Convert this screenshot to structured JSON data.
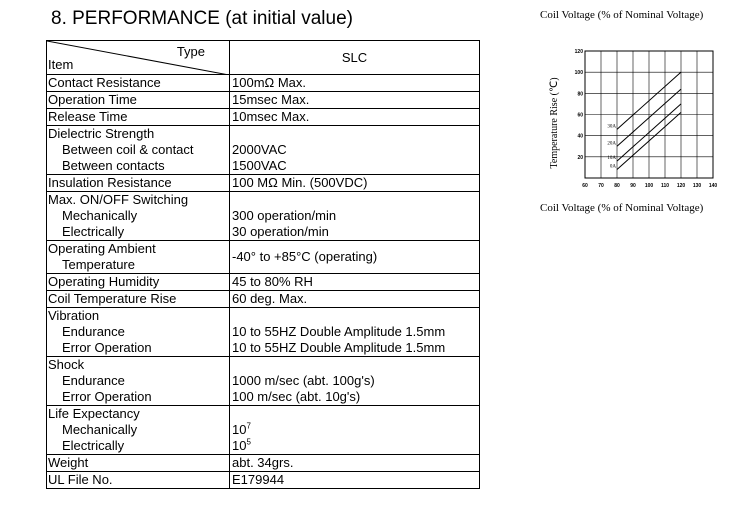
{
  "title": "8. PERFORMANCE (at initial value)",
  "table": {
    "header_type": "Type",
    "header_item": "Item",
    "header_model": "SLC",
    "contact_resistance": {
      "label": "Contact Resistance",
      "value": "100mΩ Max."
    },
    "operation_time": {
      "label": "Operation Time",
      "value": "15msec Max."
    },
    "release_time": {
      "label": "Release Time",
      "value": "10msec Max."
    },
    "dielectric": {
      "label": "Dielectric Strength",
      "sub1": "Between coil & contact",
      "val1": "2000VAC",
      "sub2": "Between contacts",
      "val2": "1500VAC"
    },
    "insulation": {
      "label": "Insulation Resistance",
      "value": "100 MΩ Min. (500VDC)"
    },
    "switching": {
      "label": "Max. ON/OFF Switching",
      "sub1": "Mechanically",
      "val1": "300 operation/min",
      "sub2": "Electrically",
      "val2": "30 operation/min"
    },
    "ambient": {
      "label1": "Operating Ambient",
      "label2": "Temperature",
      "value": "-40° to +85°C (operating)"
    },
    "humidity": {
      "label": "Operating Humidity",
      "value": "45 to 80% RH"
    },
    "coil_temp": {
      "label": "Coil Temperature Rise",
      "value": "60 deg. Max."
    },
    "vibration": {
      "label": "Vibration",
      "sub1": "Endurance",
      "val1": "10 to 55HZ Double Amplitude 1.5mm",
      "sub2": "Error Operation",
      "val2": "10 to 55HZ Double Amplitude 1.5mm"
    },
    "shock": {
      "label": "Shock",
      "sub1": "Endurance",
      "val1": "1000 m/sec (abt. 100g's)",
      "sub2": "Error Operation",
      "val2": "100 m/sec (abt. 10g's)"
    },
    "life": {
      "label": "Life Expectancy",
      "sub1": "Mechanically",
      "val1_base": "10",
      "val1_exp": "7",
      "sub2": "Electrically",
      "val2_base": "10",
      "val2_exp": "5"
    },
    "weight": {
      "label": "Weight",
      "value": "abt. 34grs."
    },
    "ul": {
      "label": "UL File No.",
      "value": "E179944"
    }
  },
  "chart_caption_top": "Coil Voltage (% of Nominal Voltage)",
  "chart_caption_bottom": "Coil Voltage (% of Nominal Voltage)",
  "chart_data": {
    "type": "line",
    "xlabel": "",
    "ylabel": "Temperature Rise (℃)",
    "xlim": [
      60,
      140
    ],
    "ylim": [
      0,
      120
    ],
    "x_ticks": [
      "60",
      "70",
      "80",
      "90",
      "100",
      "110",
      "120",
      "130",
      "140"
    ],
    "y_ticks": [
      "20",
      "40",
      "60",
      "80",
      "100",
      "120"
    ],
    "grid": true,
    "series": [
      {
        "name": "30A",
        "x": [
          80,
          120
        ],
        "y": [
          46,
          100
        ]
      },
      {
        "name": "20A",
        "x": [
          80,
          120
        ],
        "y": [
          30,
          84
        ]
      },
      {
        "name": "10A",
        "x": [
          80,
          120
        ],
        "y": [
          16,
          70
        ]
      },
      {
        "name": "0A",
        "x": [
          80,
          120
        ],
        "y": [
          8,
          62
        ]
      }
    ]
  }
}
